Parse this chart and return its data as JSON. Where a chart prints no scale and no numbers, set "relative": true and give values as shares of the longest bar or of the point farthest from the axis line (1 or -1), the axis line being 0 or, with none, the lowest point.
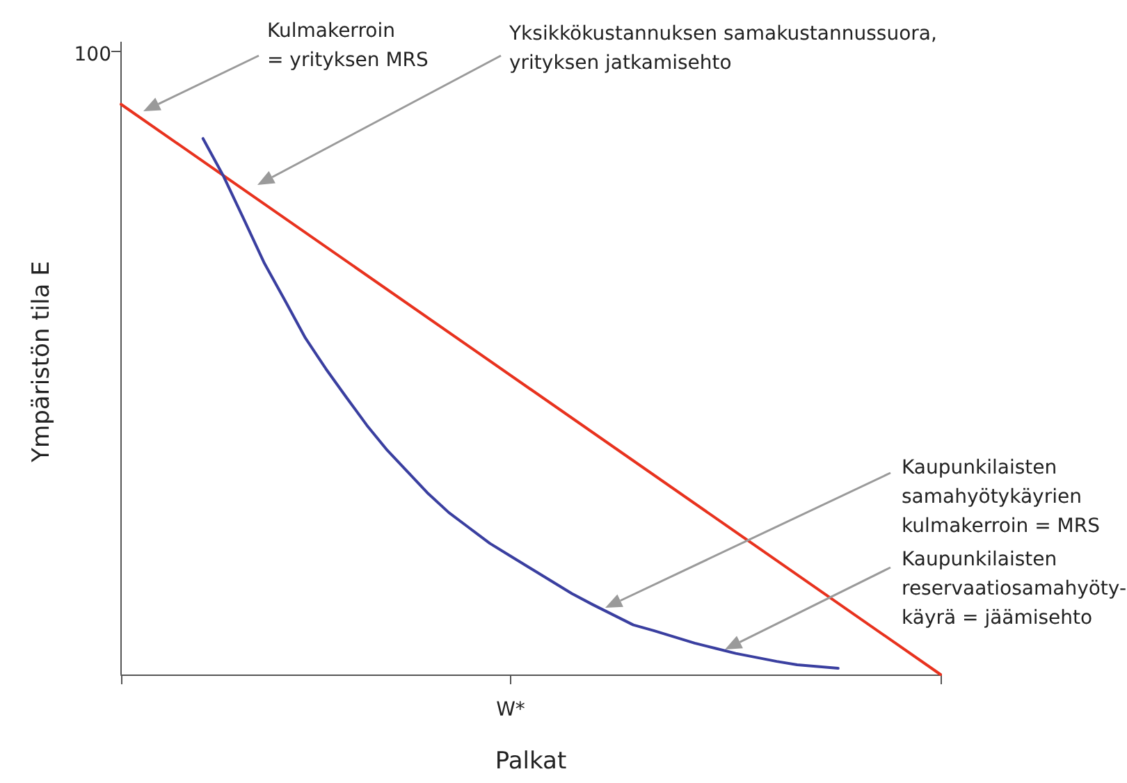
{
  "chart_data": {
    "type": "line",
    "xlabel": "Palkat",
    "ylabel": "Ympäristön tila E",
    "relative": true,
    "categories": [
      null,
      null,
      null,
      null,
      null,
      null,
      null,
      null,
      null,
      null,
      null,
      null,
      null,
      null,
      null,
      null,
      null,
      null,
      null,
      null,
      null,
      null,
      null,
      null,
      null,
      null,
      null,
      null,
      null,
      null,
      null,
      null,
      null,
      null,
      null,
      null,
      null,
      null,
      null,
      null,
      null
    ],
    "series": [
      {
        "color": "#e8321e",
        "values": [
          1,
          null,
          null,
          null,
          null,
          null,
          null,
          null,
          null,
          null,
          null,
          null,
          null,
          null,
          null,
          null,
          null,
          null,
          null,
          null,
          null,
          null,
          null,
          null,
          null,
          null,
          null,
          null,
          null,
          null,
          null,
          null,
          null,
          null,
          null,
          null,
          null,
          null,
          null,
          null,
          0
        ]
      },
      {
        "color": "#3a3fa0",
        "values": [
          null,
          null,
          null,
          null,
          0.94,
          0.874,
          0.798,
          0.721,
          0.656,
          0.59,
          0.536,
          0.486,
          0.437,
          0.393,
          0.355,
          0.317,
          0.284,
          0.257,
          0.23,
          0.208,
          0.186,
          0.164,
          0.142,
          0.123,
          0.105,
          0.087,
          0.077,
          0.066,
          0.055,
          0.046,
          0.037,
          0.03,
          0.023,
          0.017,
          0.014,
          0.011,
          null,
          null,
          null,
          null,
          null
        ]
      }
    ],
    "annotations": [
      "100",
      "W*",
      "Kulmakerroin\n= yrityksen MRS",
      "Yksikkökustannuksen samakustannussuora,\nyrityksen jatkamisehto",
      "Kaupunkilaisten\nsamahyötykäyrien\nkulmakerroin = MRS",
      "Kaupunkilaisten\nreservaatiosamahyöty-\nkäyrä = jäämisehto"
    ],
    "marker": "none",
    "line_style": "solid"
  }
}
